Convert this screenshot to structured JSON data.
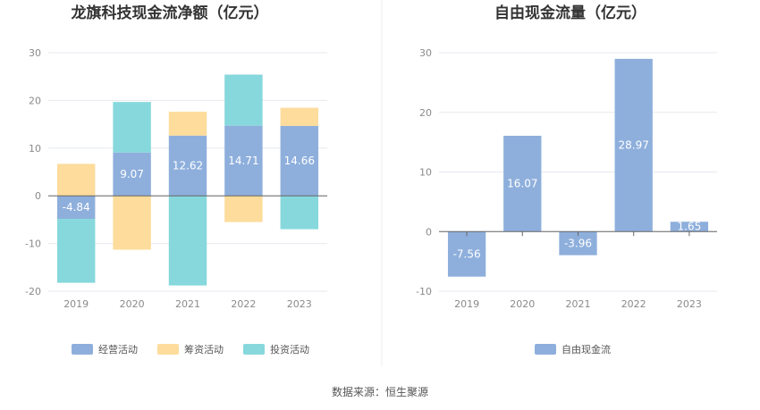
{
  "source_text": "数据来源：恒生聚源",
  "chart_data": [
    {
      "type": "bar",
      "stacked": true,
      "title": "龙旗科技现金流净额（亿元）",
      "categories": [
        "2019",
        "2020",
        "2021",
        "2022",
        "2023"
      ],
      "ylim": [
        -20,
        30
      ],
      "yticks": [
        -20,
        -10,
        0,
        10,
        20,
        30
      ],
      "grid": true,
      "legend_position": "bottom",
      "series": [
        {
          "name": "经营活动",
          "color": "#8eafdc",
          "values": [
            -4.84,
            9.07,
            12.62,
            14.71,
            14.66
          ],
          "labels": [
            "-4.84",
            "9.07",
            "12.62",
            "14.71",
            "14.66"
          ]
        },
        {
          "name": "筹资活动",
          "color": "#fddc9c",
          "values": [
            6.7,
            -11.3,
            5.0,
            -5.5,
            3.8
          ]
        },
        {
          "name": "投资活动",
          "color": "#86d8dc",
          "values": [
            -13.4,
            10.6,
            -18.8,
            10.7,
            -7.0
          ]
        }
      ]
    },
    {
      "type": "bar",
      "title": "自由现金流量（亿元）",
      "categories": [
        "2019",
        "2020",
        "2021",
        "2022",
        "2023"
      ],
      "ylim": [
        -10,
        30
      ],
      "yticks": [
        -10,
        0,
        10,
        20,
        30
      ],
      "grid": true,
      "legend_position": "bottom",
      "series": [
        {
          "name": "自由现金流",
          "color": "#8eafdc",
          "values": [
            -7.56,
            16.07,
            -3.96,
            28.97,
            1.65
          ],
          "labels": [
            "-7.56",
            "16.07",
            "-3.96",
            "28.97",
            "1.65"
          ]
        }
      ]
    }
  ]
}
